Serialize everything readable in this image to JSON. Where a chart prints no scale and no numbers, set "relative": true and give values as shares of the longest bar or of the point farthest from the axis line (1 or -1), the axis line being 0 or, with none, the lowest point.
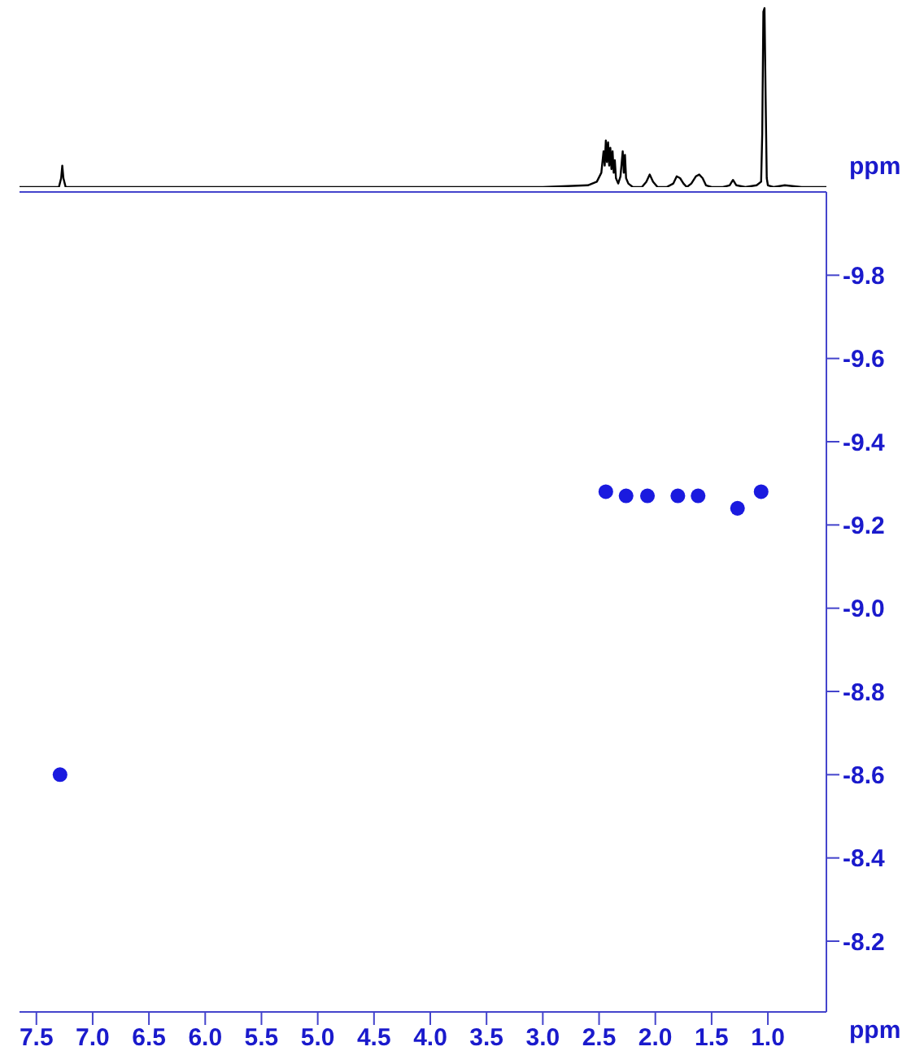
{
  "chart_data": [
    {
      "type": "line",
      "relative": true,
      "xlim": [
        7.65,
        0.48
      ],
      "grid": false,
      "marker": "none",
      "line_style": "solid",
      "series": [
        {
          "color": "#000000",
          "x": [
            7.65,
            7.3,
            7.28,
            7.27,
            7.26,
            7.24,
            3.0,
            2.6,
            2.52,
            2.48,
            2.46,
            2.45,
            2.44,
            2.43,
            2.42,
            2.41,
            2.4,
            2.39,
            2.38,
            2.37,
            2.36,
            2.35,
            2.33,
            2.31,
            2.29,
            2.28,
            2.27,
            2.26,
            2.24,
            2.2,
            2.12,
            2.08,
            2.05,
            2.02,
            1.98,
            1.9,
            1.84,
            1.81,
            1.78,
            1.75,
            1.72,
            1.68,
            1.64,
            1.61,
            1.58,
            1.55,
            1.5,
            1.4,
            1.34,
            1.31,
            1.28,
            1.2,
            1.1,
            1.06,
            1.05,
            1.04,
            1.03,
            1.02,
            1.01,
            1.0,
            0.95,
            0.85,
            0.7,
            0.48
          ],
          "values": [
            0,
            0,
            0.05,
            0.12,
            0.05,
            0,
            0,
            0.01,
            0.03,
            0.08,
            0.2,
            0.12,
            0.26,
            0.14,
            0.25,
            0.12,
            0.22,
            0.1,
            0.2,
            0.08,
            0.15,
            0.05,
            0.02,
            0.06,
            0.2,
            0.08,
            0.18,
            0.05,
            0.02,
            0,
            0,
            0.03,
            0.07,
            0.03,
            0,
            0,
            0.02,
            0.06,
            0.05,
            0.02,
            0,
            0.02,
            0.06,
            0.07,
            0.05,
            0.01,
            0,
            0,
            0.01,
            0.04,
            0.01,
            0,
            0.01,
            0.03,
            0.3,
            0.98,
            1,
            0.5,
            0.05,
            0.01,
            0,
            0.01,
            0,
            0
          ]
        }
      ]
    },
    {
      "type": "scatter",
      "xlabel": "ppm",
      "ylabel": "ppm",
      "xlim": [
        7.65,
        0.48
      ],
      "ylim": [
        -8.03,
        -10.0
      ],
      "xticks": [
        7.5,
        {
          "value": 7,
          "label": "7.0"
        },
        6.5,
        {
          "value": 6,
          "label": "6.0"
        },
        5.5,
        {
          "value": 5,
          "label": "5.0"
        },
        4.5,
        {
          "value": 4,
          "label": "4.0"
        },
        3.5,
        {
          "value": 3,
          "label": "3.0"
        },
        2.5,
        {
          "value": 2,
          "label": "2.0"
        },
        1.5,
        {
          "value": 1,
          "label": "1.0"
        }
      ],
      "yticks": [
        -9.8,
        -9.6,
        -9.4,
        -9.2,
        {
          "value": -9,
          "label": "-9.0"
        },
        -8.8,
        -8.6,
        -8.4,
        -8.2
      ],
      "grid": false,
      "marker": "circle",
      "series": [
        {
          "color": "#1a1adf",
          "x": [
            7.29,
            2.44,
            2.26,
            2.07,
            1.8,
            1.62,
            1.27,
            1.06
          ],
          "values": [
            -8.6,
            -9.28,
            -9.27,
            -9.27,
            -9.27,
            -9.27,
            -9.24,
            -9.28
          ]
        }
      ]
    }
  ]
}
